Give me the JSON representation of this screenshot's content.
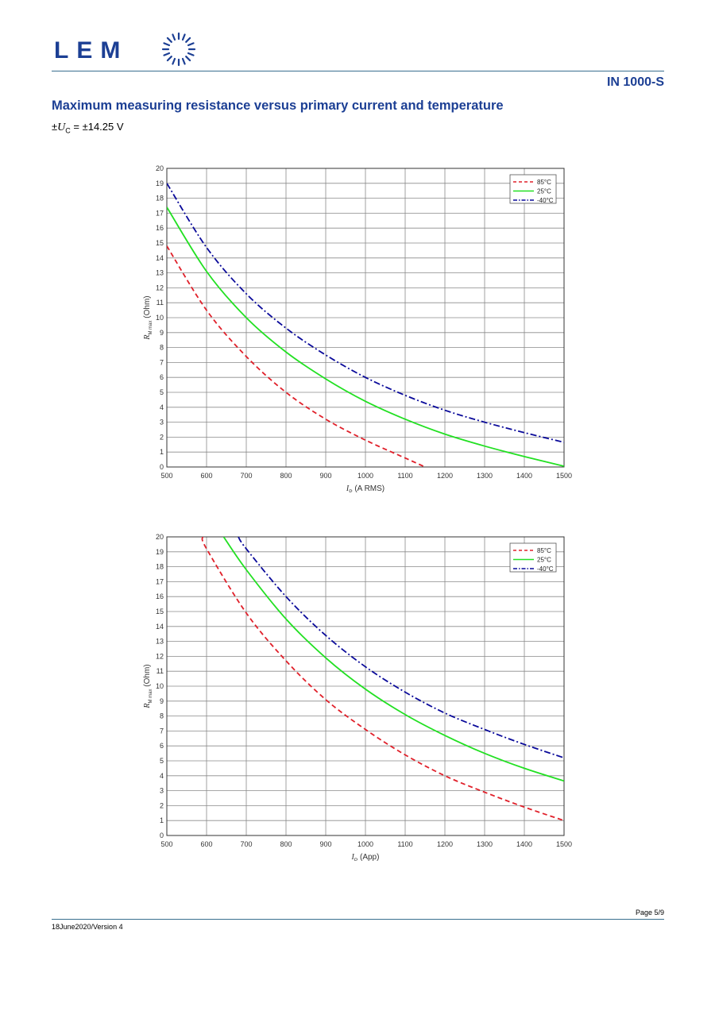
{
  "header": {
    "logo_text": "LEM",
    "doc_id": "IN 1000-S"
  },
  "section": {
    "title": "Maximum measuring resistance versus primary current and temperature",
    "supply_prefix": "±",
    "supply_symbol": "U",
    "supply_sub": "C",
    "supply_value": " = ±14.25 V"
  },
  "footer": {
    "page": "Page 5/9",
    "version": "18June2020/Version 4"
  },
  "colors": {
    "brand": "#1c3f94",
    "rule": "#3a6f8f",
    "series_85": "#e0202a",
    "series_25": "#22e022",
    "series_m40": "#0a0a9a"
  },
  "chart_data": [
    {
      "type": "line",
      "xlabel_symbol": "I",
      "xlabel_sub": "P",
      "xlabel_unit": " (A RMS)",
      "ylabel_symbol": "R",
      "ylabel_sub": "M max",
      "ylabel_unit": " (Ohm)",
      "xlim": [
        500,
        1500
      ],
      "ylim": [
        0,
        20
      ],
      "xticks": [
        500,
        600,
        700,
        800,
        900,
        1000,
        1100,
        1200,
        1300,
        1400,
        1500
      ],
      "yticks": [
        0,
        1,
        2,
        3,
        4,
        5,
        6,
        7,
        8,
        9,
        10,
        11,
        12,
        13,
        14,
        15,
        16,
        17,
        18,
        19,
        20
      ],
      "grid": true,
      "legend_position": "top-right",
      "series": [
        {
          "name": "85°C",
          "style": "dashed",
          "color": "#e0202a",
          "x": [
            500,
            600,
            700,
            800,
            900,
            1000,
            1100,
            1150
          ],
          "y": [
            14.8,
            10.5,
            7.4,
            5.0,
            3.2,
            1.8,
            0.6,
            0.0
          ]
        },
        {
          "name": "25°C",
          "style": "solid",
          "color": "#22e022",
          "x": [
            500,
            600,
            700,
            800,
            900,
            1000,
            1100,
            1200,
            1300,
            1400,
            1500
          ],
          "y": [
            17.4,
            13.1,
            10.0,
            7.7,
            5.9,
            4.4,
            3.2,
            2.2,
            1.4,
            0.7,
            0.05
          ]
        },
        {
          "name": "-40°C",
          "style": "dashdot",
          "color": "#0a0a9a",
          "x": [
            500,
            600,
            700,
            800,
            900,
            1000,
            1100,
            1200,
            1300,
            1400,
            1500
          ],
          "y": [
            19.0,
            14.7,
            11.6,
            9.3,
            7.5,
            6.0,
            4.8,
            3.8,
            3.0,
            2.3,
            1.65
          ]
        }
      ]
    },
    {
      "type": "line",
      "xlabel_symbol": "I",
      "xlabel_sub": "P",
      "xlabel_unit": " (App)",
      "ylabel_symbol": "R",
      "ylabel_sub": "M max",
      "ylabel_unit": " (Ohm)",
      "xlim": [
        500,
        1500
      ],
      "ylim": [
        0,
        20
      ],
      "xticks": [
        500,
        600,
        700,
        800,
        900,
        1000,
        1100,
        1200,
        1300,
        1400,
        1500
      ],
      "yticks": [
        0,
        1,
        2,
        3,
        4,
        5,
        6,
        7,
        8,
        9,
        10,
        11,
        12,
        13,
        14,
        15,
        16,
        17,
        18,
        19,
        20
      ],
      "grid": true,
      "legend_position": "top-right",
      "series": [
        {
          "name": "85°C",
          "style": "dashed",
          "color": "#e0202a",
          "x": [
            590,
            600,
            700,
            800,
            900,
            1000,
            1100,
            1200,
            1300,
            1400,
            1500
          ],
          "y": [
            20.0,
            19.2,
            14.9,
            11.7,
            9.1,
            7.1,
            5.4,
            4.0,
            2.9,
            1.9,
            1.0
          ]
        },
        {
          "name": "25°C",
          "style": "solid",
          "color": "#22e022",
          "x": [
            643,
            700,
            800,
            900,
            1000,
            1100,
            1200,
            1300,
            1400,
            1500
          ],
          "y": [
            20.0,
            17.8,
            14.5,
            11.9,
            9.8,
            8.1,
            6.7,
            5.5,
            4.5,
            3.65
          ]
        },
        {
          "name": "-40°C",
          "style": "dashdot",
          "color": "#0a0a9a",
          "x": [
            680,
            700,
            800,
            900,
            1000,
            1100,
            1200,
            1300,
            1400,
            1500
          ],
          "y": [
            20.0,
            19.2,
            16.0,
            13.4,
            11.3,
            9.6,
            8.2,
            7.1,
            6.1,
            5.2
          ]
        }
      ]
    }
  ]
}
